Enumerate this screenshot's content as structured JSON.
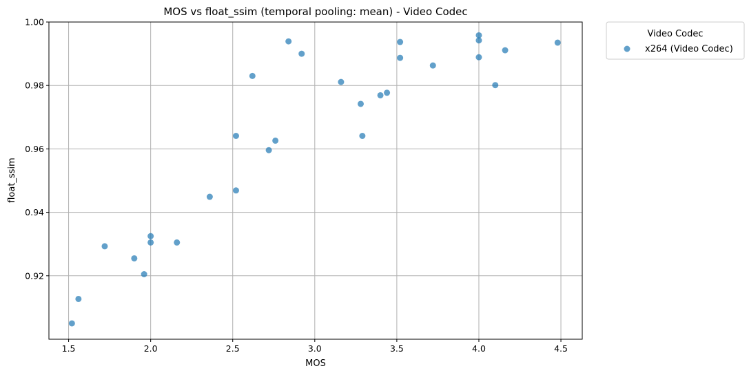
{
  "chart_data": {
    "type": "scatter",
    "title": "MOS vs float_ssim (temporal pooling: mean) - Video Codec",
    "xlabel": "MOS",
    "ylabel": "float_ssim",
    "xlim": [
      1.38,
      4.63
    ],
    "ylim": [
      0.9,
      1.0
    ],
    "x_ticks": [
      "1.5",
      "2.0",
      "2.5",
      "3.0",
      "3.5",
      "4.0",
      "4.5"
    ],
    "y_ticks": [
      "0.92",
      "0.94",
      "0.96",
      "0.98",
      "1.00"
    ],
    "grid": true,
    "legend": {
      "title": "Video Codec",
      "placement": "outside-top-right"
    },
    "series": [
      {
        "name": "x264 (Video Codec)",
        "color": "#1f77b4",
        "points": [
          [
            1.52,
            0.905
          ],
          [
            1.56,
            0.9127
          ],
          [
            1.72,
            0.9293
          ],
          [
            1.9,
            0.9255
          ],
          [
            1.96,
            0.9205
          ],
          [
            2.0,
            0.9325
          ],
          [
            2.0,
            0.9305
          ],
          [
            2.16,
            0.9305
          ],
          [
            2.36,
            0.9449
          ],
          [
            2.52,
            0.9469
          ],
          [
            2.52,
            0.9641
          ],
          [
            2.62,
            0.983
          ],
          [
            2.72,
            0.9596
          ],
          [
            2.76,
            0.9626
          ],
          [
            2.84,
            0.9939
          ],
          [
            2.92,
            0.99
          ],
          [
            3.16,
            0.9811
          ],
          [
            3.28,
            0.9742
          ],
          [
            3.29,
            0.9641
          ],
          [
            3.4,
            0.9769
          ],
          [
            3.44,
            0.9777
          ],
          [
            3.52,
            0.9937
          ],
          [
            3.52,
            0.9887
          ],
          [
            3.72,
            0.9863
          ],
          [
            4.0,
            0.9958
          ],
          [
            4.0,
            0.9942
          ],
          [
            4.0,
            0.9889
          ],
          [
            4.1,
            0.9801
          ],
          [
            4.16,
            0.9911
          ],
          [
            4.48,
            0.9935
          ]
        ]
      }
    ]
  }
}
